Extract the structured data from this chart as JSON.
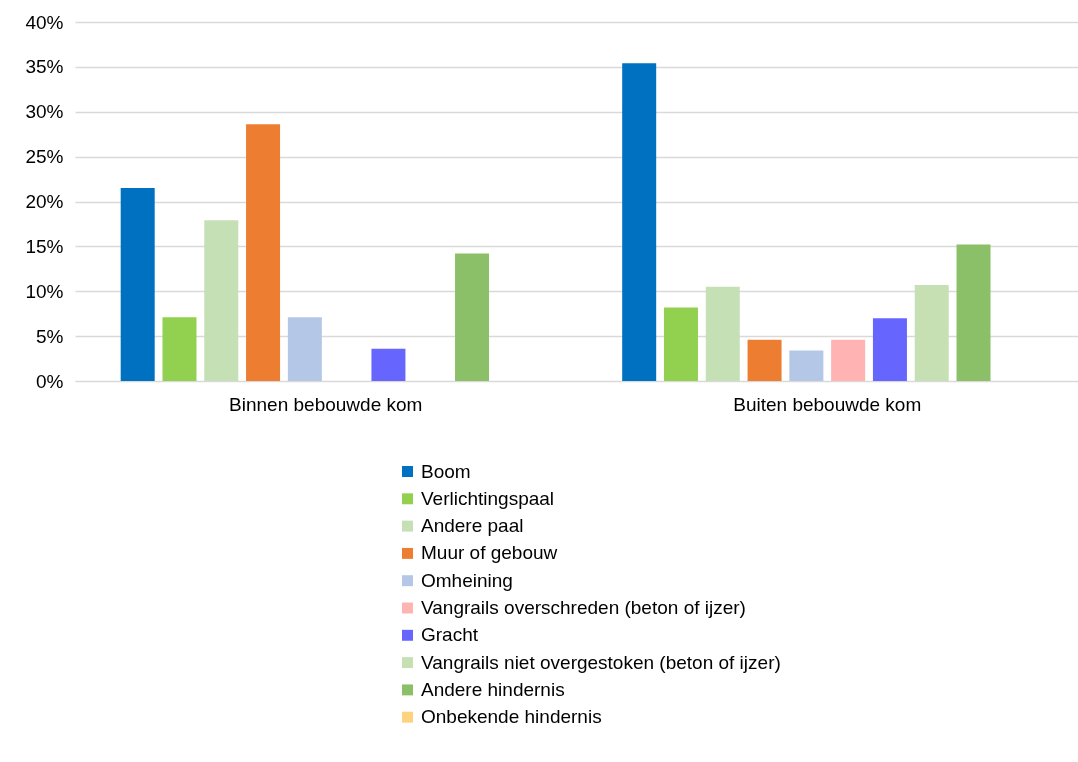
{
  "chart_data": {
    "type": "bar",
    "categories": [
      "Binnen bebouwde kom",
      "Buiten bebouwde kom"
    ],
    "series": [
      {
        "name": "Boom",
        "color": "#0070c0",
        "values": [
          21.5,
          35.4
        ]
      },
      {
        "name": "Verlichtingspaal",
        "color": "#92d050",
        "values": [
          7.1,
          8.2
        ]
      },
      {
        "name": "Andere paal",
        "color": "#c5e0b4",
        "values": [
          17.9,
          10.5
        ]
      },
      {
        "name": "Muur of gebouw",
        "color": "#ed7d31",
        "values": [
          28.6,
          4.6
        ]
      },
      {
        "name": "Omheining",
        "color": "#b4c7e7",
        "values": [
          7.1,
          3.4
        ]
      },
      {
        "name": "Vangrails overschreden (beton of ijzer)",
        "color": "#ffb3b3",
        "values": [
          0,
          4.6
        ]
      },
      {
        "name": "Gracht",
        "color": "#6666ff",
        "values": [
          3.6,
          7.0
        ]
      },
      {
        "name": "Vangrails niet overgestoken (beton of ijzer)",
        "color": "#c6e0b4",
        "values": [
          0,
          10.7
        ]
      },
      {
        "name": "Andere hindernis",
        "color": "#8cc068",
        "values": [
          14.2,
          15.2
        ]
      },
      {
        "name": "Onbekende hindernis",
        "color": "#ffd280",
        "values": [
          0,
          0
        ]
      }
    ],
    "ylim": [
      0,
      40
    ],
    "yticks": [
      {
        "value": 0,
        "label": "0%"
      },
      {
        "value": 5,
        "label": "5%"
      },
      {
        "value": 10,
        "label": "10%"
      },
      {
        "value": 15,
        "label": "15%"
      },
      {
        "value": 20,
        "label": "20%"
      },
      {
        "value": 25,
        "label": "25%"
      },
      {
        "value": 30,
        "label": "30%"
      },
      {
        "value": 35,
        "label": "35%"
      },
      {
        "value": 40,
        "label": "40%"
      }
    ],
    "grid": "y",
    "legend": "bottom"
  }
}
